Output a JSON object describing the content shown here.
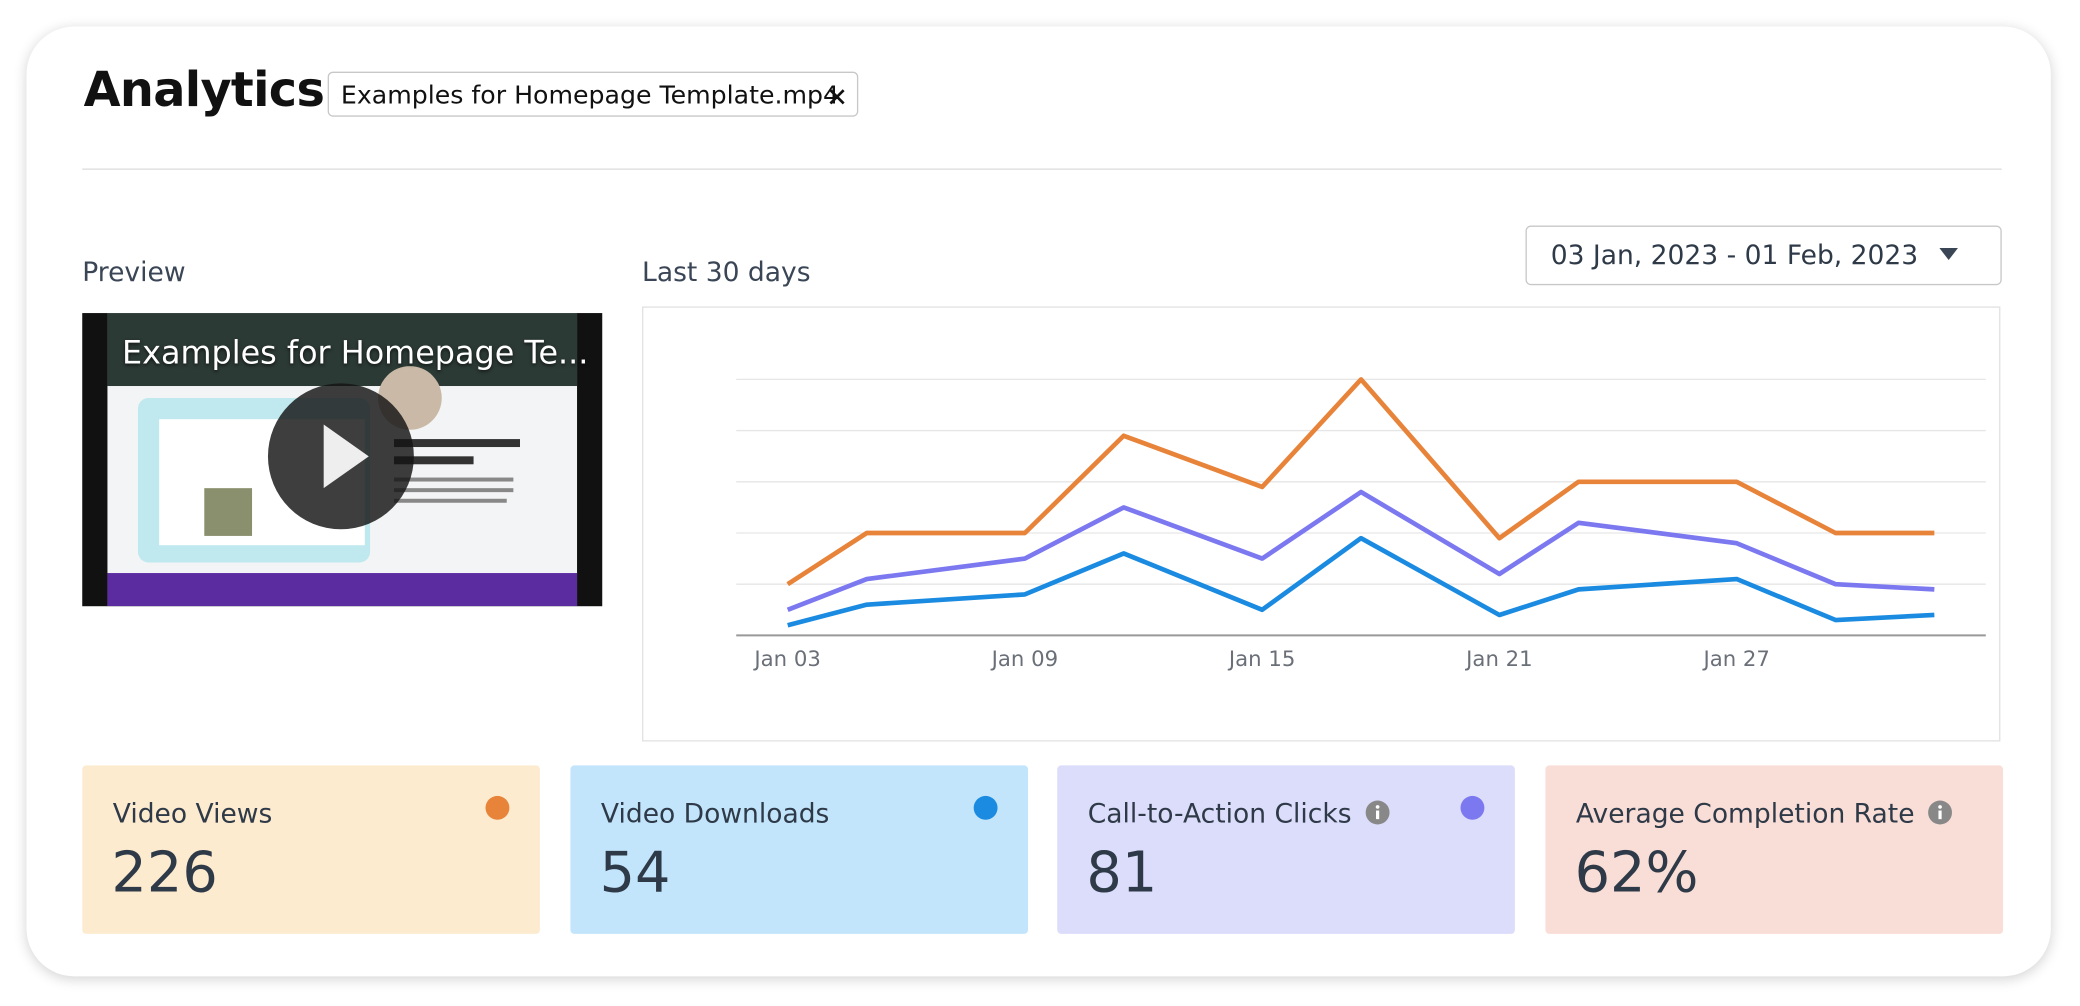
{
  "header": {
    "title": "Analytics",
    "file_tag": "Examples for Homepage Template.mp4"
  },
  "preview": {
    "label": "Preview",
    "video_title": "Examples for Homepage Te..."
  },
  "chart_header": {
    "label": "Last 30 days",
    "date_range": "03 Jan, 2023 - 01 Feb, 2023"
  },
  "chart_data": {
    "type": "line",
    "x": [
      0,
      2,
      6,
      8.5,
      12,
      14.5,
      18,
      20,
      24,
      26.5,
      29
    ],
    "xlim": [
      -1.3,
      30.3
    ],
    "xticks": [
      {
        "value": 0,
        "label": "Jan 03"
      },
      {
        "value": 6,
        "label": "Jan 09"
      },
      {
        "value": 12,
        "label": "Jan 15"
      },
      {
        "value": 18,
        "label": "Jan 21"
      },
      {
        "value": 24,
        "label": "Jan 27"
      }
    ],
    "ylim": [
      0,
      50
    ],
    "yticks": [
      0,
      10,
      20,
      30,
      40,
      50
    ],
    "grid": true,
    "series": [
      {
        "color": "#e8833a",
        "values": [
          10,
          20,
          20,
          39,
          29,
          50,
          19,
          30,
          30,
          20,
          20
        ]
      },
      {
        "color": "#7b78f0",
        "values": [
          5,
          11,
          15,
          25,
          15,
          28,
          12,
          22,
          18,
          10,
          9
        ]
      },
      {
        "color": "#1a8be0",
        "values": [
          2,
          6,
          8,
          16,
          5,
          19,
          4,
          9,
          11,
          3,
          4
        ]
      }
    ]
  },
  "stats": [
    {
      "label": "Video Views",
      "value": "226",
      "color": "#e8833a",
      "background": "#fdebd0"
    },
    {
      "label": "Video Downloads",
      "value": "54",
      "color": "#1a8be0",
      "background": "#c2e5fb"
    },
    {
      "label": "Call-to-Action Clicks",
      "value": "81",
      "color": "#7b78f0",
      "background": "#dcdcfb",
      "info": true
    },
    {
      "label": "Average Completion Rate",
      "value": "62%",
      "background": "#f9ddd7",
      "info": true
    }
  ]
}
